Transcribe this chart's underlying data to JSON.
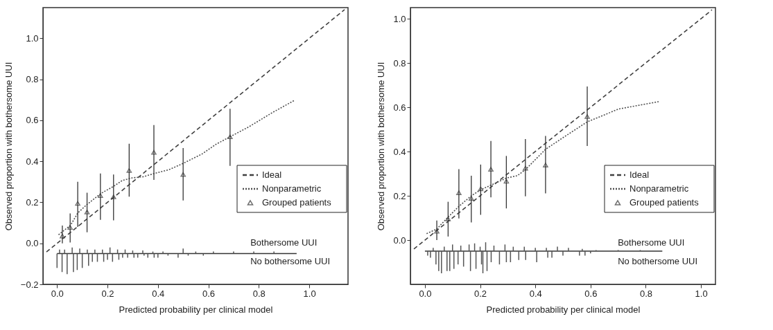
{
  "chart_data": [
    {
      "type": "line",
      "xlabel": "Predicted probability per clinical model",
      "ylabel": "Observed proportion with bothersome UUI",
      "xlim": [
        -0.042,
        1.14
      ],
      "ylim": [
        -0.2,
        1.15
      ],
      "xticks": [
        {
          "value": 0,
          "label": "0.0"
        },
        {
          "value": 0.2,
          "label": "0.2"
        },
        {
          "value": 0.4,
          "label": "0.4"
        },
        {
          "value": 0.6,
          "label": "0.6"
        },
        {
          "value": 0.8,
          "label": "0.8"
        },
        {
          "value": 1,
          "label": "1.0"
        }
      ],
      "yticks": [
        {
          "value": -0.2,
          "label": "−0.2"
        },
        {
          "value": 0,
          "label": "0.0"
        },
        {
          "value": 0.2,
          "label": "0.2"
        },
        {
          "value": 0.4,
          "label": "0.4"
        },
        {
          "value": 0.6,
          "label": "0.6"
        },
        {
          "value": 0.8,
          "label": "0.8"
        },
        {
          "value": 1,
          "label": "1.0"
        }
      ],
      "grid": false,
      "legend": "right",
      "annotations": [
        "Bothersome UUI",
        "No bothersome UUI"
      ],
      "series": [
        {
          "name": "Ideal",
          "line_style": "dashed",
          "marker": "none",
          "color": "#404040",
          "x": [
            -0.042,
            1.14
          ],
          "values": [
            -0.042,
            1.14
          ]
        },
        {
          "name": "Nonparametric",
          "line_style": "dotted",
          "marker": "none",
          "color": "#505050",
          "x": [
            0.006,
            0.054,
            0.082,
            0.119,
            0.172,
            0.224,
            0.259,
            0.296,
            0.342,
            0.389,
            0.445,
            0.5,
            0.575,
            0.63,
            0.686,
            0.76,
            0.854,
            0.942
          ],
          "values": [
            0.042,
            0.089,
            0.148,
            0.19,
            0.242,
            0.278,
            0.307,
            0.319,
            0.325,
            0.342,
            0.36,
            0.39,
            0.436,
            0.483,
            0.52,
            0.568,
            0.638,
            0.698
          ]
        },
        {
          "name": "Grouped patients",
          "type": "scatter",
          "marker": "triangle",
          "color": "#333333",
          "x": [
            0.021,
            0.052,
            0.082,
            0.119,
            0.172,
            0.224,
            0.286,
            0.384,
            0.5,
            0.686
          ],
          "values": [
            0.036,
            0.078,
            0.195,
            0.153,
            0.233,
            0.227,
            0.356,
            0.444,
            0.336,
            0.52
          ],
          "errors": [
            [
              0.0,
              0.087
            ],
            [
              0.004,
              0.146
            ],
            [
              0.08,
              0.3
            ],
            [
              0.054,
              0.247
            ],
            [
              0.115,
              0.341
            ],
            [
              0.112,
              0.336
            ],
            [
              0.228,
              0.486
            ],
            [
              0.31,
              0.577
            ],
            [
              0.209,
              0.465
            ],
            [
              0.378,
              0.656
            ]
          ]
        },
        {
          "line_style": "solid",
          "marker": "none",
          "color": "#333333",
          "x": [
            0,
            0.95
          ],
          "values": [
            -0.05,
            -0.05
          ]
        },
        {
          "type": "bar",
          "color": "#555555",
          "x": [
            0.0,
            0.01,
            0.02,
            0.03,
            0.04,
            0.06,
            0.065,
            0.08,
            0.09,
            0.1,
            0.12,
            0.125,
            0.14,
            0.15,
            0.16,
            0.18,
            0.185,
            0.2,
            0.21,
            0.22,
            0.24,
            0.245,
            0.26,
            0.27,
            0.28,
            0.3,
            0.305,
            0.32,
            0.34,
            0.345,
            0.36,
            0.38,
            0.385,
            0.4,
            0.42,
            0.44,
            0.48,
            0.5,
            0.52,
            0.55,
            0.58,
            0.62,
            0.7,
            0.78,
            0.86
          ],
          "base": [
            -0.05,
            -0.05,
            -0.05,
            -0.05,
            -0.05,
            -0.05,
            -0.05,
            -0.05,
            -0.05,
            -0.05,
            -0.05,
            -0.05,
            -0.05,
            -0.05,
            -0.05,
            -0.05,
            -0.05,
            -0.05,
            -0.05,
            -0.05,
            -0.05,
            -0.05,
            -0.05,
            -0.05,
            -0.05,
            -0.05,
            -0.05,
            -0.05,
            -0.05,
            -0.05,
            -0.05,
            -0.05,
            -0.05,
            -0.05,
            -0.05,
            -0.05,
            -0.05,
            -0.05,
            -0.05,
            -0.05,
            -0.05,
            -0.05,
            -0.05,
            -0.05,
            -0.05
          ],
          "values": [
            -0.07,
            0.02,
            -0.09,
            0.02,
            -0.1,
            0.03,
            -0.09,
            -0.08,
            0.025,
            -0.07,
            0.02,
            -0.06,
            -0.04,
            0.02,
            -0.04,
            0.02,
            -0.04,
            -0.03,
            0.03,
            -0.04,
            0.02,
            -0.03,
            -0.02,
            0.02,
            -0.02,
            0.015,
            -0.02,
            -0.02,
            0.015,
            -0.01,
            -0.02,
            0.01,
            -0.02,
            -0.02,
            0.01,
            -0.01,
            -0.02,
            0.025,
            -0.01,
            0.01,
            -0.01,
            0.01,
            0.01,
            0.01,
            0.01
          ]
        }
      ]
    },
    {
      "type": "line",
      "xlabel": "Predicted probability per clinical model",
      "ylabel": "Observed proportion with bothersome UUI",
      "xlim": [
        -0.04,
        1.04
      ],
      "ylim": [
        -0.2,
        1.05
      ],
      "xticks": [
        {
          "value": 0,
          "label": "0.0"
        },
        {
          "value": 0.2,
          "label": "0.2"
        },
        {
          "value": 0.4,
          "label": "0.4"
        },
        {
          "value": 0.6,
          "label": "0.6"
        },
        {
          "value": 0.8,
          "label": "0.8"
        },
        {
          "value": 1,
          "label": "1.0"
        }
      ],
      "yticks": [
        {
          "value": 0,
          "label": "0.0"
        },
        {
          "value": 0.2,
          "label": "0.2"
        },
        {
          "value": 0.4,
          "label": "0.4"
        },
        {
          "value": 0.6,
          "label": "0.6"
        },
        {
          "value": 0.8,
          "label": "0.8"
        },
        {
          "value": 1,
          "label": "1.0"
        }
      ],
      "grid": false,
      "legend": "right",
      "annotations": [
        "Bothersome UUI",
        "No bothersome UUI"
      ],
      "series": [
        {
          "name": "Ideal",
          "line_style": "dashed",
          "marker": "none",
          "color": "#404040",
          "x": [
            -0.04,
            1.04
          ],
          "values": [
            -0.04,
            1.04
          ]
        },
        {
          "name": "Nonparametric",
          "line_style": "dotted",
          "marker": "none",
          "color": "#505050",
          "x": [
            0.006,
            0.043,
            0.084,
            0.123,
            0.168,
            0.202,
            0.239,
            0.295,
            0.335,
            0.364,
            0.437,
            0.502,
            0.588,
            0.702,
            0.85
          ],
          "values": [
            0.029,
            0.05,
            0.104,
            0.152,
            0.2,
            0.227,
            0.248,
            0.28,
            0.291,
            0.318,
            0.41,
            0.464,
            0.534,
            0.592,
            0.626
          ]
        },
        {
          "name": "Grouped patients",
          "type": "scatter",
          "marker": "triangle",
          "color": "#333333",
          "x": [
            0.043,
            0.084,
            0.123,
            0.168,
            0.202,
            0.239,
            0.295,
            0.364,
            0.437,
            0.588
          ],
          "values": [
            0.04,
            0.096,
            0.214,
            0.189,
            0.232,
            0.32,
            0.266,
            0.325,
            0.339,
            0.558
          ],
          "errors": [
            [
              0.0,
              0.088
            ],
            [
              0.016,
              0.173
            ],
            [
              0.098,
              0.32
            ],
            [
              0.08,
              0.291
            ],
            [
              0.114,
              0.341
            ],
            [
              0.193,
              0.448
            ],
            [
              0.143,
              0.38
            ],
            [
              0.198,
              0.456
            ],
            [
              0.211,
              0.47
            ],
            [
              0.425,
              0.694
            ]
          ]
        },
        {
          "line_style": "solid",
          "marker": "none",
          "color": "#333333",
          "x": [
            0,
            0.86
          ],
          "values": [
            -0.05,
            -0.05
          ]
        },
        {
          "type": "bar",
          "color": "#555555",
          "x": [
            0.01,
            0.02,
            0.03,
            0.04,
            0.05,
            0.06,
            0.07,
            0.08,
            0.09,
            0.1,
            0.105,
            0.12,
            0.13,
            0.14,
            0.16,
            0.165,
            0.18,
            0.185,
            0.2,
            0.205,
            0.21,
            0.22,
            0.225,
            0.24,
            0.25,
            0.27,
            0.29,
            0.295,
            0.31,
            0.32,
            0.34,
            0.36,
            0.365,
            0.4,
            0.405,
            0.44,
            0.445,
            0.46,
            0.48,
            0.5,
            0.52,
            0.56,
            0.57,
            0.58,
            0.6,
            0.62,
            0.7,
            0.78
          ],
          "base": [
            -0.05,
            -0.05,
            -0.05,
            -0.05,
            -0.05,
            -0.05,
            -0.05,
            -0.05,
            -0.05,
            -0.05,
            -0.05,
            -0.05,
            -0.05,
            -0.05,
            -0.05,
            -0.05,
            -0.05,
            -0.05,
            -0.05,
            -0.05,
            -0.05,
            -0.05,
            -0.05,
            -0.05,
            -0.05,
            -0.05,
            -0.05,
            -0.05,
            -0.05,
            -0.05,
            -0.05,
            -0.05,
            -0.05,
            -0.05,
            -0.05,
            -0.05,
            -0.05,
            -0.05,
            -0.05,
            -0.05,
            -0.05,
            -0.05,
            -0.05,
            -0.05,
            -0.05,
            -0.05,
            -0.05,
            -0.05
          ],
          "values": [
            -0.02,
            -0.03,
            0.015,
            -0.06,
            -0.09,
            -0.1,
            0.02,
            -0.09,
            -0.09,
            0.03,
            -0.08,
            -0.06,
            0.025,
            -0.07,
            0.03,
            -0.09,
            0.035,
            -0.08,
            0.02,
            -0.06,
            -0.1,
            0.04,
            -0.09,
            -0.05,
            0.025,
            -0.06,
            0.03,
            -0.05,
            -0.05,
            0.02,
            -0.04,
            0.02,
            -0.04,
            0.015,
            -0.05,
            0.015,
            -0.03,
            -0.03,
            0.02,
            -0.02,
            0.015,
            -0.02,
            0.01,
            -0.02,
            -0.01,
            0.005,
            0.005,
            0.005
          ]
        }
      ]
    }
  ]
}
